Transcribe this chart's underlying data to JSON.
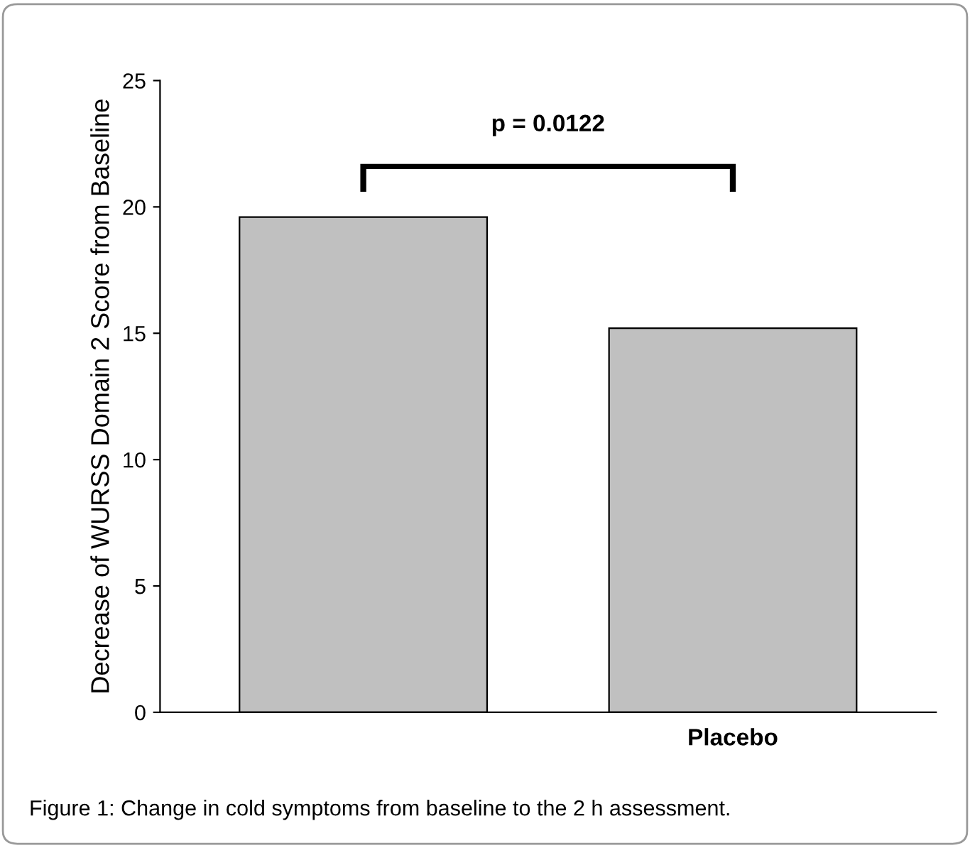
{
  "chart_data": {
    "type": "bar",
    "ylabel": "Decrease of WURSS Domain 2 Score from Baseline",
    "categories": [
      null,
      "Placebo"
    ],
    "values": [
      19.6,
      15.2
    ],
    "color": "#c0c0c0",
    "ylim": [
      0,
      25
    ],
    "yticks": [
      0,
      5,
      10,
      15,
      20,
      25
    ],
    "grid": false,
    "annotations": [
      "p = 0.0122",
      "Figure 1: Change in cold symptoms from baseline to the 2 h assessment."
    ]
  }
}
